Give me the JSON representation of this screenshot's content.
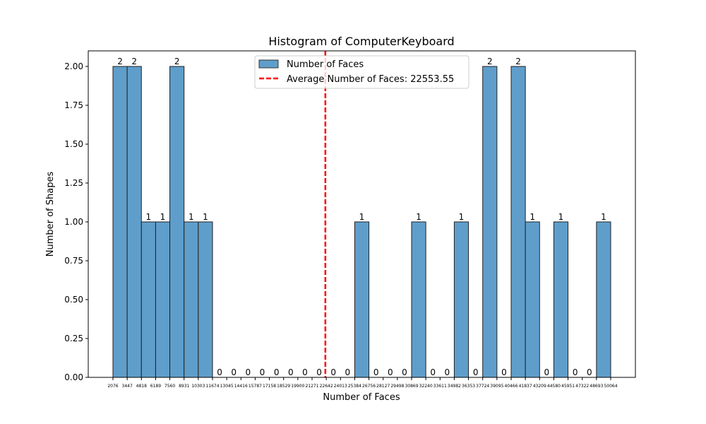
{
  "chart_data": {
    "type": "bar",
    "title": "Histogram of ComputerKeyboard",
    "xlabel": "Number of Faces",
    "ylabel": "Number of Shapes",
    "ylim": [
      0,
      2.1
    ],
    "yticks": [
      "0.00",
      "0.25",
      "0.50",
      "0.75",
      "1.00",
      "1.25",
      "1.50",
      "1.75",
      "2.00"
    ],
    "bin_edges": [
      "2076",
      "3447",
      "4818",
      "6189",
      "7560",
      "8931",
      "10303",
      "11674",
      "13045",
      "14416",
      "15787",
      "17158",
      "18529",
      "19900",
      "21271",
      "22642",
      "24013",
      "25384",
      "26756",
      "28127",
      "29498",
      "30869",
      "32240",
      "33611",
      "34982",
      "36353",
      "37724",
      "39095",
      "40466",
      "41837",
      "43209",
      "44580",
      "45951",
      "47322",
      "48693",
      "50064"
    ],
    "values": [
      2,
      2,
      1,
      1,
      2,
      1,
      1,
      0,
      0,
      0,
      0,
      0,
      0,
      0,
      0,
      0,
      0,
      1,
      0,
      0,
      0,
      1,
      0,
      0,
      1,
      0,
      2,
      0,
      2,
      1,
      0,
      1,
      0,
      0,
      1
    ],
    "data_labels": [
      "2",
      "2",
      "1",
      "1",
      "2",
      "1",
      "1",
      "0",
      "0",
      "0",
      "0",
      "0",
      "0",
      "0",
      "0",
      "0",
      "0",
      "1",
      "0",
      "0",
      "0",
      "1",
      "0",
      "0",
      "1",
      "0",
      "2",
      "0",
      "2",
      "1",
      "0",
      "1",
      "0",
      "0",
      "1"
    ],
    "series": [
      {
        "name": "Number of Faces",
        "color": "#5f9ecb"
      }
    ],
    "average_line": {
      "label": "Average Number of Faces: 22553.55",
      "value": 22553.55,
      "color": "#ff0000",
      "style": "dashed"
    },
    "legend_position": "top-center",
    "grid": false
  }
}
